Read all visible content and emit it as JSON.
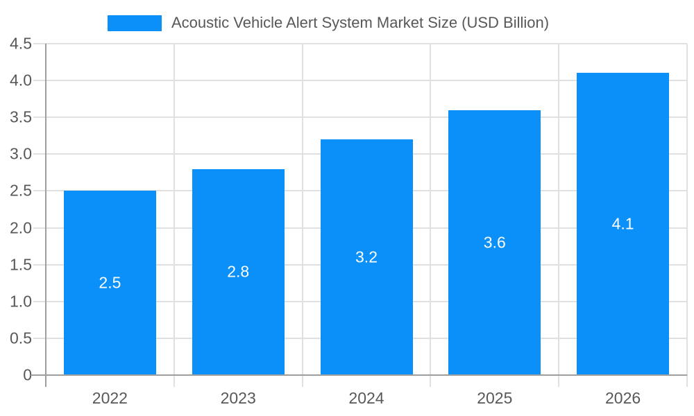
{
  "chart_data": {
    "type": "bar",
    "title": "Acoustic Vehicle Alert System Market Size (USD Billion)",
    "legend": {
      "position": "top",
      "entries": [
        "Acoustic Vehicle Alert System Market Size (USD Billion)"
      ]
    },
    "categories": [
      "2022",
      "2023",
      "2024",
      "2025",
      "2026"
    ],
    "values": [
      2.5,
      2.8,
      3.2,
      3.6,
      4.1
    ],
    "bar_labels": [
      "2.5",
      "2.8",
      "3.2",
      "3.6",
      "4.1"
    ],
    "xlabel": "",
    "ylabel": "",
    "ylim": [
      0,
      4.5
    ],
    "ytick_step": 0.5,
    "ytick_labels": [
      "0",
      "0.5",
      "1.0",
      "1.5",
      "2.0",
      "2.5",
      "3.0",
      "3.5",
      "4.0",
      "4.5"
    ],
    "grid": "horizontal-and-vertical-category-boundaries",
    "colors": {
      "bar": "#0a90f8",
      "grid": "#e0e0e0",
      "axis": "#9e9e9e",
      "text": "#58585a",
      "bar_label_text": "#ffffff",
      "background": "#ffffff"
    }
  }
}
